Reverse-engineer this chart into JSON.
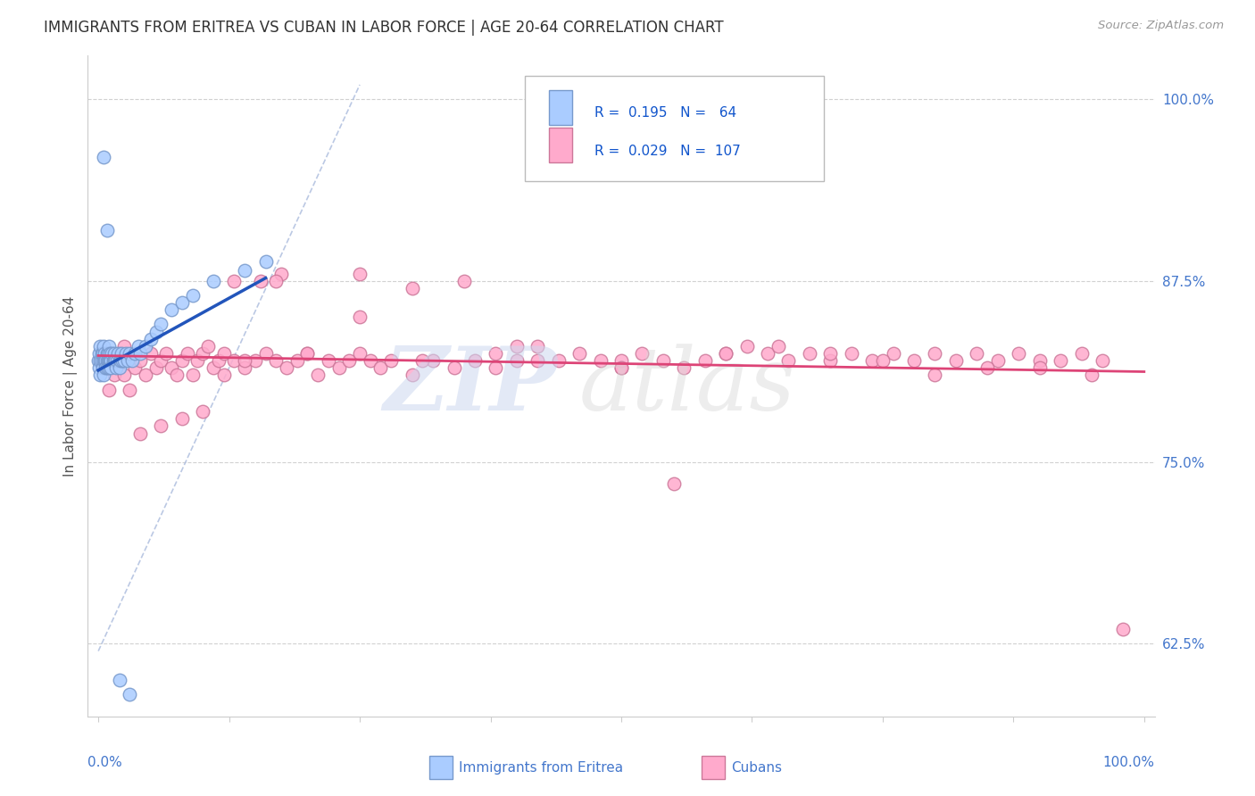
{
  "title": "IMMIGRANTS FROM ERITREA VS CUBAN IN LABOR FORCE | AGE 20-64 CORRELATION CHART",
  "source": "Source: ZipAtlas.com",
  "ylabel": "In Labor Force | Age 20-64",
  "background_color": "#ffffff",
  "grid_color": "#cccccc",
  "axis_label_color": "#4477cc",
  "legend_text_color": "#1155cc",
  "eritrea_color": "#aaccff",
  "eritrea_edge": "#7799cc",
  "cuba_color": "#ffaacc",
  "cuba_edge": "#cc7799",
  "eritrea_line_color": "#2255bb",
  "cuba_line_color": "#dd4477",
  "ref_line_color": "#aabbdd",
  "yticks": [
    0.625,
    0.75,
    0.875,
    1.0
  ],
  "ytick_labels": [
    "62.5%",
    "75.0%",
    "87.5%",
    "100.0%"
  ],
  "ylim": [
    0.575,
    1.03
  ],
  "xlim": [
    -0.01,
    1.01
  ],
  "eritrea_R": 0.195,
  "eritrea_N": 64,
  "cuba_R": 0.029,
  "cuba_N": 107
}
